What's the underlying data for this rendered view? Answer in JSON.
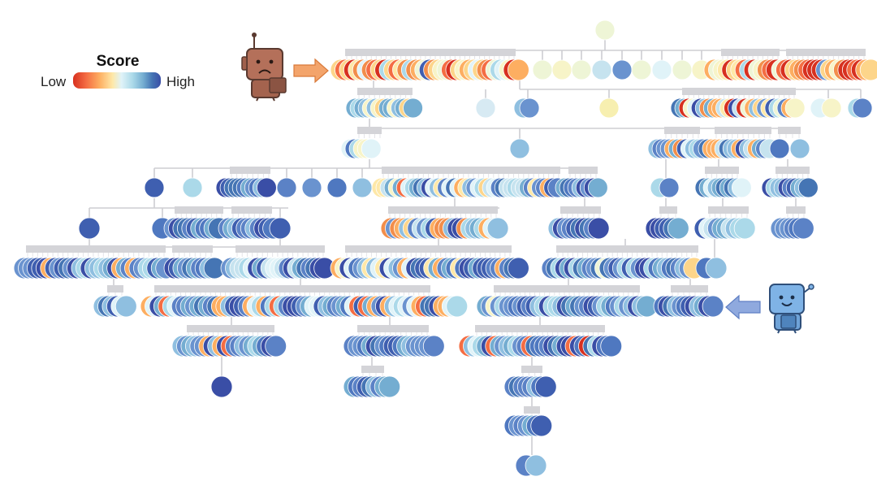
{
  "legend": {
    "title": "Score",
    "low_label": "Low",
    "high_label": "High",
    "gradient": [
      "#d7301f",
      "#f46d43",
      "#fdae61",
      "#fee8a8",
      "#e0f3f8",
      "#abd9e9",
      "#74add1",
      "#4575b4",
      "#3a4ea6"
    ]
  },
  "colors": {
    "connector": "#cdcdd2",
    "bracket": "#d4d4d8",
    "low_arrow": "#f3a46b",
    "high_arrow": "#8fa9de",
    "low_robot": "#b4705a",
    "high_robot": "#7fb3e6"
  },
  "icons": {
    "low_score_agent": "sad-brown-robot-icon",
    "high_score_agent": "happy-blue-robot-icon",
    "low_pointer": "orange-arrow-right-icon",
    "high_pointer": "blue-arrow-left-icon"
  }
}
